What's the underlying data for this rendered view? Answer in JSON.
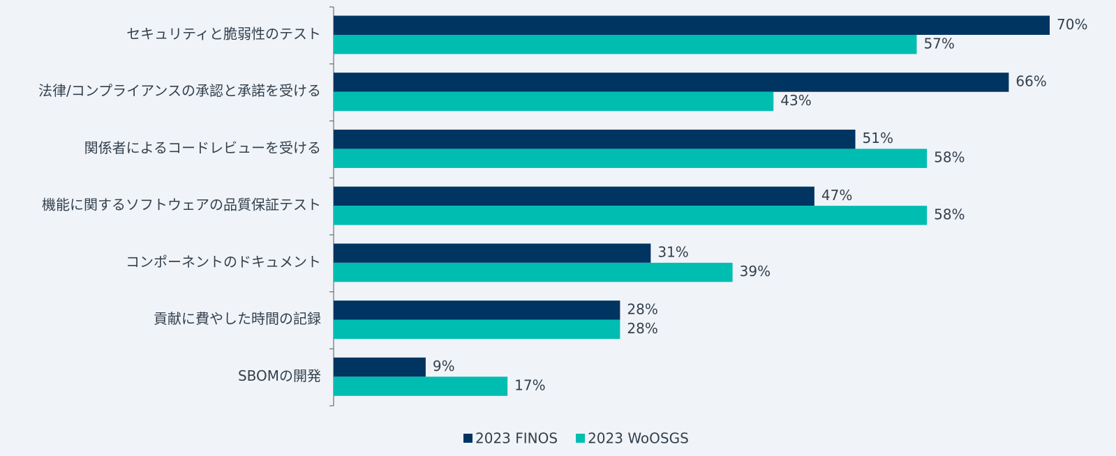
{
  "chart_data": {
    "type": "bar",
    "orientation": "horizontal",
    "categories": [
      "セキュリティと脆弱性のテスト",
      "法律/コンプライアンスの承認と承諾を受ける",
      "関係者によるコードレビューを受ける",
      "機能に関するソフトウェアの品質保証テスト",
      "コンポーネントのドキュメント",
      "貢献に費やした時間の記録",
      "SBOMの開発"
    ],
    "series": [
      {
        "name": "2023 FINOS",
        "color": "#003562",
        "values": [
          70,
          66,
          51,
          47,
          31,
          28,
          9
        ],
        "value_labels": [
          "70%",
          "66%",
          "51%",
          "47%",
          "31%",
          "28%",
          "9%"
        ]
      },
      {
        "name": "2023 WoOSGS",
        "color": "#00bdb2",
        "values": [
          57,
          43,
          58,
          58,
          39,
          28,
          17
        ],
        "value_labels": [
          "57%",
          "43%",
          "58%",
          "58%",
          "39%",
          "28%",
          "17%"
        ]
      }
    ],
    "legend": "bottom"
  }
}
